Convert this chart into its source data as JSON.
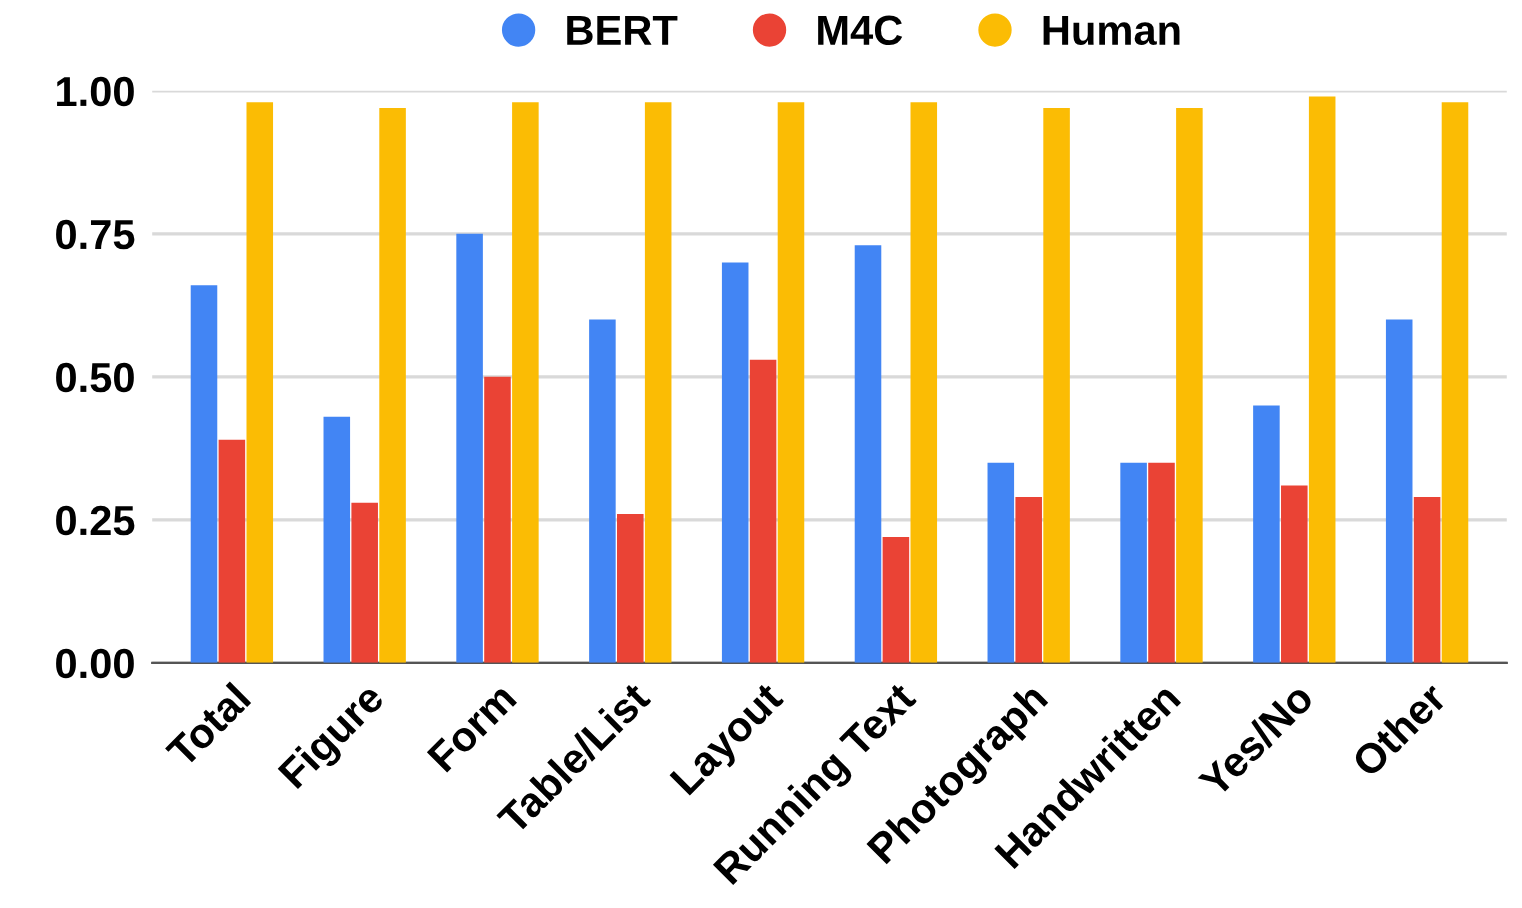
{
  "chart_data": {
    "type": "bar",
    "categories": [
      "Total",
      "Figure",
      "Form",
      "Table/List",
      "Layout",
      "Running Text",
      "Photograph",
      "Handwritten",
      "Yes/No",
      "Other"
    ],
    "series": [
      {
        "name": "BERT",
        "color": "#4285f4",
        "values": [
          0.66,
          0.43,
          0.75,
          0.6,
          0.7,
          0.73,
          0.35,
          0.35,
          0.45,
          0.6
        ]
      },
      {
        "name": "M4C",
        "color": "#ea4335",
        "values": [
          0.39,
          0.28,
          0.5,
          0.26,
          0.53,
          0.22,
          0.29,
          0.35,
          0.31,
          0.29
        ]
      },
      {
        "name": "Human",
        "color": "#fbbc04",
        "values": [
          0.98,
          0.97,
          0.98,
          0.98,
          0.98,
          0.98,
          0.97,
          0.97,
          0.99,
          0.98
        ]
      }
    ],
    "ylim": [
      0,
      1.0
    ],
    "yticks": [
      {
        "value": 0,
        "label": "0.00"
      },
      {
        "value": 0.25,
        "label": "0.25"
      },
      {
        "value": 0.5,
        "label": "0.50"
      },
      {
        "value": 0.75,
        "label": "0.75"
      },
      {
        "value": 1.0,
        "label": "1.00"
      }
    ],
    "grid": "y",
    "legend": "top"
  }
}
